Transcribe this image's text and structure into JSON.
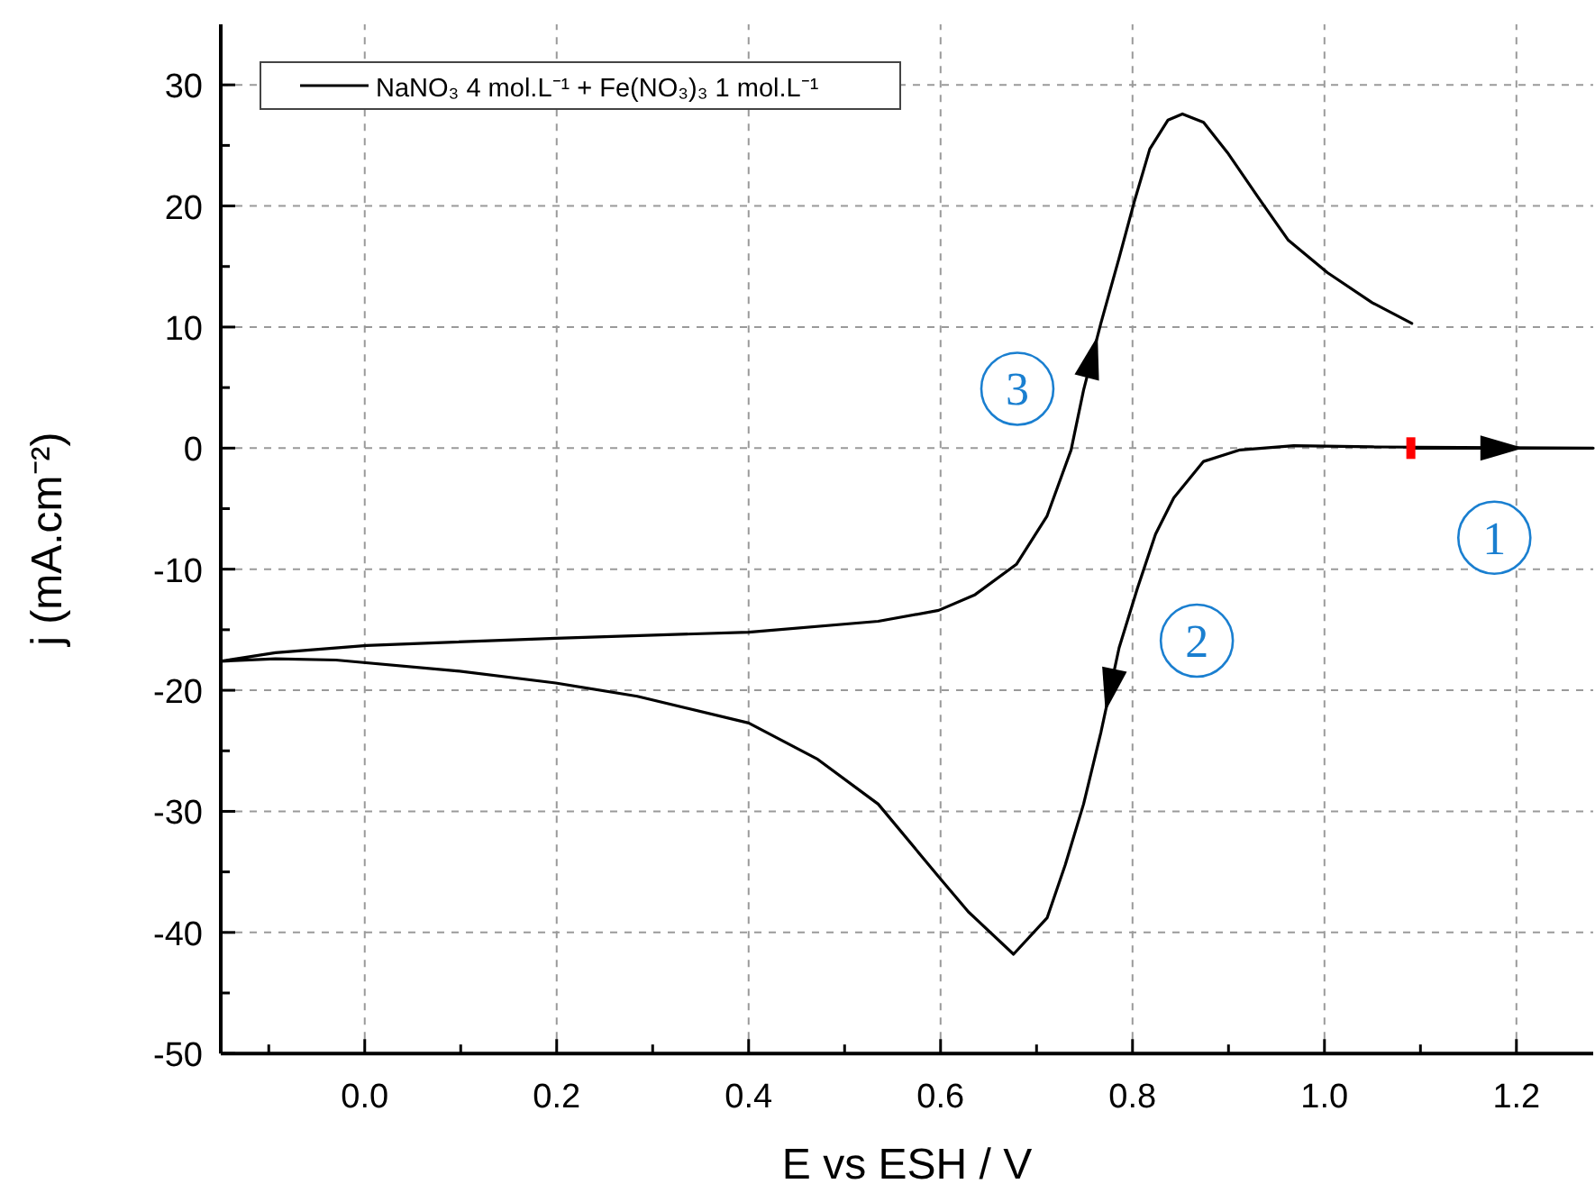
{
  "chart_data": {
    "type": "line",
    "xlabel": "E vs ESH / V",
    "ylabel": "j (mA.cm⁻²)",
    "xlim": [
      -0.15,
      1.28
    ],
    "ylim": [
      -50,
      35
    ],
    "xticks": [
      {
        "value": -0.1,
        "label": null
      },
      {
        "value": 0,
        "label": "0.0"
      },
      {
        "value": 0.1,
        "label": null
      },
      {
        "value": 0.2,
        "label": "0.2"
      },
      {
        "value": 0.3,
        "label": null
      },
      {
        "value": 0.4,
        "label": "0.4"
      },
      {
        "value": 0.5,
        "label": null
      },
      {
        "value": 0.6,
        "label": "0.6"
      },
      {
        "value": 0.7,
        "label": null
      },
      {
        "value": 0.8,
        "label": "0.8"
      },
      {
        "value": 0.9,
        "label": null
      },
      {
        "value": 1.0,
        "label": "1.0"
      },
      {
        "value": 1.1,
        "label": null
      },
      {
        "value": 1.2,
        "label": "1.2"
      }
    ],
    "yticks": [
      -50,
      {
        "value": -45,
        "label": null
      },
      -40,
      {
        "value": -35,
        "label": null
      },
      -30,
      {
        "value": -25,
        "label": null
      },
      -20,
      {
        "value": -15,
        "label": null
      },
      -10,
      {
        "value": -5,
        "label": null
      },
      0,
      {
        "value": 5,
        "label": null
      },
      10,
      {
        "value": 15,
        "label": null
      },
      20,
      {
        "value": 25,
        "label": null
      },
      30
    ],
    "grid": true,
    "legend": "top left",
    "line_style": "solid",
    "marker": "none",
    "series": [
      {
        "name": "NaNO₃ 4 mol.L⁻¹ + Fe(NO₃)₃ 1 mol.L⁻¹",
        "color": "#000000",
        "x": [
          1.09,
          1.28,
          1.05,
          0.968,
          0.912,
          0.874,
          0.843,
          0.824,
          0.805,
          0.786,
          0.767,
          0.749,
          0.73,
          0.711,
          0.676,
          0.629,
          0.598,
          0.535,
          0.472,
          0.4,
          0.284,
          0.199,
          0.096,
          -0.03,
          -0.093,
          -0.15,
          -0.093,
          0.002,
          0.199,
          0.4,
          0.535,
          0.598,
          0.636,
          0.679,
          0.711,
          0.736,
          0.749,
          0.767,
          0.786,
          0.802,
          0.818,
          0.837,
          0.852,
          0.874,
          0.899,
          0.931,
          0.962,
          1.003,
          1.05,
          1.091
        ],
        "values": [
          0,
          0,
          0.1,
          0.2,
          -0.15,
          -1.1,
          -4.1,
          -7.1,
          -11.6,
          -16.5,
          -23.5,
          -29.4,
          -34.4,
          -38.8,
          -41.8,
          -38.3,
          -35.4,
          -29.4,
          -25.7,
          -22.7,
          -20.5,
          -19.4,
          -18.4,
          -17.5,
          -17.4,
          -17.6,
          -16.9,
          -16.3,
          -15.7,
          -15.2,
          -14.3,
          -13.4,
          -12.1,
          -9.6,
          -5.6,
          -0.15,
          4.8,
          10.3,
          15.7,
          20.4,
          24.7,
          27.1,
          27.6,
          26.9,
          24.4,
          20.7,
          17.2,
          14.5,
          12.0,
          10.3
        ]
      }
    ],
    "annotations": [
      {
        "text": "1",
        "x": 1.177,
        "y": -7.4
      },
      {
        "text": "2",
        "x": 0.867,
        "y": -15.9
      },
      {
        "text": "3",
        "x": 0.68,
        "y": 4.9
      }
    ]
  }
}
